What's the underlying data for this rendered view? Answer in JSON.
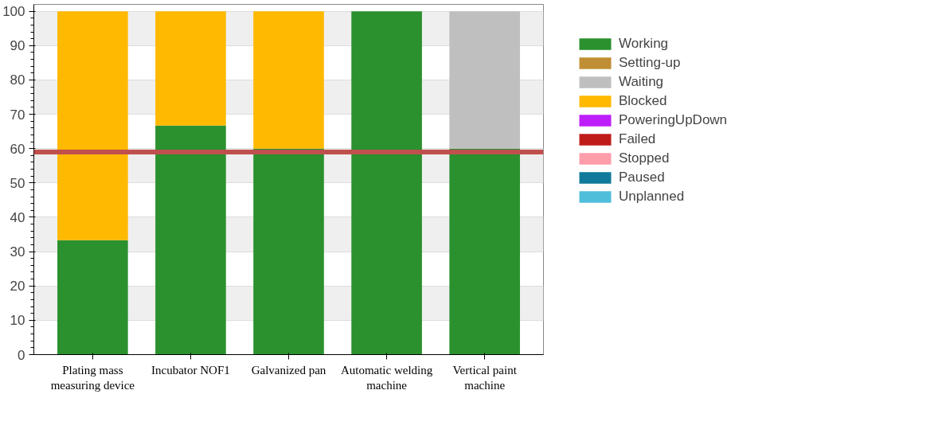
{
  "chart_data": {
    "type": "bar",
    "stacked": true,
    "categories": [
      "Plating mass measuring device",
      "Incubator NOF1",
      "Galvanized pan",
      "Automatic welding machine",
      "Vertical paint machine"
    ],
    "series": [
      {
        "name": "Working",
        "color": "#2a912e",
        "values": [
          33.3,
          66.7,
          60,
          100,
          60
        ]
      },
      {
        "name": "Setting-up",
        "color": "#c08e34",
        "values": [
          0,
          0,
          0,
          0,
          0
        ]
      },
      {
        "name": "Waiting",
        "color": "#bfbfbf",
        "values": [
          0,
          0,
          0,
          0,
          40
        ]
      },
      {
        "name": "Blocked",
        "color": "#ffb900",
        "values": [
          66.7,
          33.3,
          40,
          0,
          0
        ]
      },
      {
        "name": "PoweringUpDown",
        "color": "#bd1efa",
        "values": [
          0,
          0,
          0,
          0,
          0
        ]
      },
      {
        "name": "Failed",
        "color": "#c01b1b",
        "values": [
          0,
          0,
          0,
          0,
          0
        ]
      },
      {
        "name": "Stopped",
        "color": "#ff9daa",
        "values": [
          0,
          0,
          0,
          0,
          0
        ]
      },
      {
        "name": "Paused",
        "color": "#117a9a",
        "values": [
          0,
          0,
          0,
          0,
          0
        ]
      },
      {
        "name": "Unplanned",
        "color": "#4fbedb",
        "values": [
          0,
          0,
          0,
          0,
          0
        ]
      }
    ],
    "ylim": [
      0,
      102
    ],
    "yticks": [
      0,
      10,
      20,
      30,
      40,
      50,
      60,
      70,
      80,
      90,
      100
    ],
    "grid": "y",
    "legend": "right",
    "ref_lines": [
      {
        "axis": "y",
        "value": 59,
        "color": "#c0504d"
      }
    ]
  }
}
